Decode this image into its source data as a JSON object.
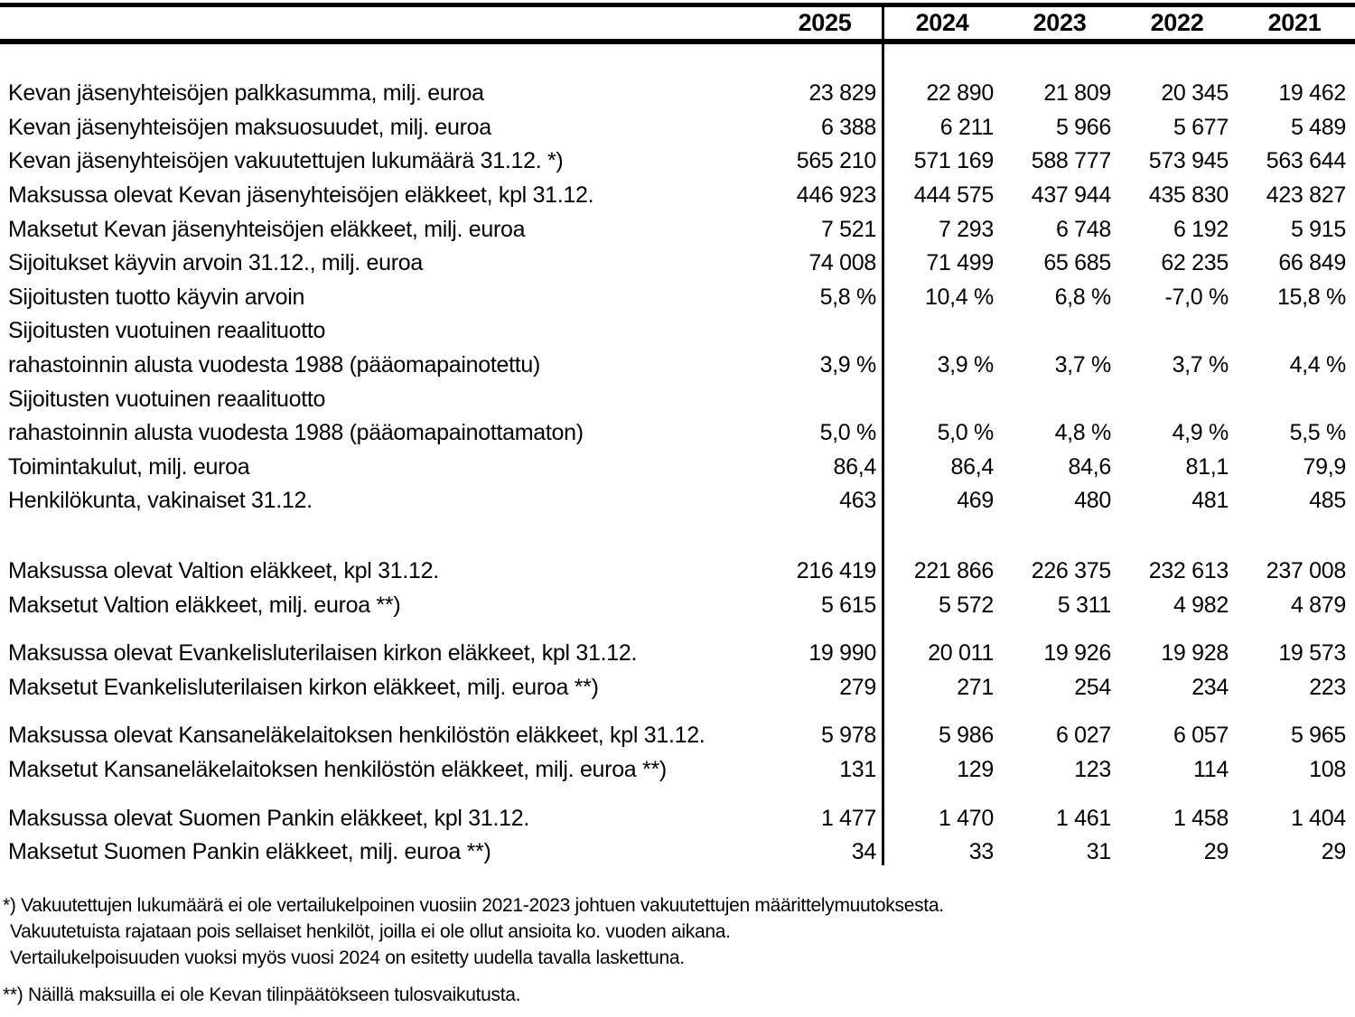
{
  "colors": {
    "background": "#ffffff",
    "text": "#000000",
    "rule": "#000000"
  },
  "table": {
    "years": [
      "2025",
      "2024",
      "2023",
      "2022",
      "2021"
    ],
    "rows": [
      {
        "label": "Kevan jäsenyhteisöjen palkkasumma, milj. euroa",
        "values": [
          "23 829",
          "22 890",
          "21 809",
          "20 345",
          "19 462"
        ]
      },
      {
        "label": "Kevan jäsenyhteisöjen maksuosuudet, milj. euroa",
        "values": [
          "6 388",
          "6 211",
          "5 966",
          "5 677",
          "5 489"
        ]
      },
      {
        "label": "Kevan jäsenyhteisöjen vakuutettujen lukumäärä 31.12. *)",
        "values": [
          "565 210",
          "571 169",
          "588 777",
          "573 945",
          "563 644"
        ]
      },
      {
        "label": "Maksussa olevat Kevan jäsenyhteisöjen eläkkeet, kpl 31.12.",
        "values": [
          "446 923",
          "444 575",
          "437 944",
          "435 830",
          "423 827"
        ]
      },
      {
        "label": "Maksetut Kevan jäsenyhteisöjen eläkkeet, milj. euroa",
        "values": [
          "7 521",
          "7 293",
          "6 748",
          "6 192",
          "5 915"
        ]
      },
      {
        "label": "Sijoitukset käyvin arvoin 31.12., milj. euroa",
        "values": [
          "74 008",
          "71 499",
          "65 685",
          "62 235",
          "66 849"
        ]
      },
      {
        "label": "Sijoitusten tuotto käyvin arvoin",
        "values": [
          "5,8 %",
          "10,4 %",
          "6,8 %",
          "-7,0 %",
          "15,8 %"
        ]
      },
      {
        "label": "Sijoitusten vuotuinen reaalituotto",
        "values": [
          "",
          "",
          "",
          "",
          ""
        ]
      },
      {
        "label": "rahastoinnin alusta vuodesta 1988 (pääomapainotettu)",
        "values": [
          "3,9 %",
          "3,9 %",
          "3,7 %",
          "3,7 %",
          "4,4 %"
        ]
      },
      {
        "label": "Sijoitusten vuotuinen reaalituotto",
        "values": [
          "",
          "",
          "",
          "",
          ""
        ]
      },
      {
        "label": "rahastoinnin alusta vuodesta 1988 (pääomapainottamaton)",
        "values": [
          "5,0 %",
          "5,0 %",
          "4,8 %",
          "4,9 %",
          "5,5 %"
        ]
      },
      {
        "label": "Toimintakulut, milj. euroa",
        "values": [
          "86,4",
          "86,4",
          "84,6",
          "81,1",
          "79,9"
        ]
      },
      {
        "label": "Henkilökunta, vakinaiset 31.12.",
        "values": [
          "463",
          "469",
          "480",
          "481",
          "485"
        ]
      },
      {
        "spacer": "large"
      },
      {
        "label": "Maksussa olevat Valtion eläkkeet, kpl 31.12.",
        "values": [
          "216 419",
          "221 866",
          "226 375",
          "232 613",
          "237 008"
        ]
      },
      {
        "label": "Maksetut Valtion eläkkeet, milj. euroa **)",
        "values": [
          "5 615",
          "5 572",
          "5 311",
          "4 982",
          "4 879"
        ]
      },
      {
        "spacer": "small"
      },
      {
        "label": "Maksussa olevat Evankelisluterilaisen kirkon eläkkeet, kpl 31.12.",
        "values": [
          "19 990",
          "20 011",
          "19 926",
          "19 928",
          "19 573"
        ]
      },
      {
        "label": "Maksetut Evankelisluterilaisen kirkon eläkkeet, milj. euroa **)",
        "values": [
          "279",
          "271",
          "254",
          "234",
          "223"
        ]
      },
      {
        "spacer": "small"
      },
      {
        "label": "Maksussa olevat Kansaneläkelaitoksen henkilöstön eläkkeet, kpl 31.12.",
        "values": [
          "5 978",
          "5 986",
          "6 027",
          "6 057",
          "5 965"
        ]
      },
      {
        "label": "Maksetut Kansaneläkelaitoksen henkilöstön eläkkeet, milj. euroa **)",
        "values": [
          "131",
          "129",
          "123",
          "114",
          "108"
        ]
      },
      {
        "spacer": "small"
      },
      {
        "label": "Maksussa olevat Suomen Pankin eläkkeet, kpl 31.12.",
        "values": [
          "1 477",
          "1 470",
          "1 461",
          "1 458",
          "1 404"
        ]
      },
      {
        "label": "Maksetut Suomen Pankin eläkkeet, milj. euroa **)",
        "values": [
          "34",
          "33",
          "31",
          "29",
          "29"
        ]
      }
    ]
  },
  "footnotes": {
    "star": {
      "line1": "*) Vakuutettujen lukumäärä ei ole vertailukelpoinen vuosiin 2021-2023 johtuen vakuutettujen määrittelymuutoksesta.",
      "line2": "Vakuutetuista rajataan pois sellaiset henkilöt, joilla ei ole ollut ansioita ko. vuoden aikana.",
      "line3": "Vertailukelpoisuuden vuoksi myös vuosi 2024 on esitetty uudella tavalla laskettuna."
    },
    "doublestar": {
      "line1": "**) Näillä maksuilla ei ole Kevan tilinpäätökseen tulosvaikutusta."
    }
  }
}
